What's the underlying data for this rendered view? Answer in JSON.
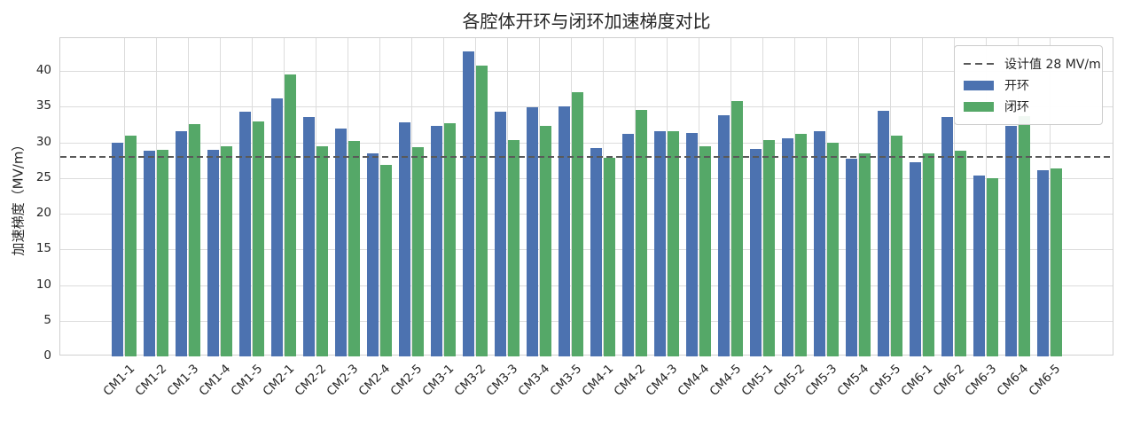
{
  "chart_data": {
    "type": "bar",
    "title": "各腔体开环与闭环加速梯度对比",
    "xlabel": "",
    "ylabel": "加速梯度（MV/m）",
    "categories": [
      "CM1-1",
      "CM1-2",
      "CM1-3",
      "CM1-4",
      "CM1-5",
      "CM2-1",
      "CM2-2",
      "CM2-3",
      "CM2-4",
      "CM2-5",
      "CM3-1",
      "CM3-2",
      "CM3-3",
      "CM3-4",
      "CM3-5",
      "CM4-1",
      "CM4-2",
      "CM4-3",
      "CM4-4",
      "CM4-5",
      "CM5-1",
      "CM5-2",
      "CM5-3",
      "CM5-4",
      "CM5-5",
      "CM6-1",
      "CM6-2",
      "CM6-3",
      "CM6-4",
      "CM6-5"
    ],
    "series": [
      {
        "name": "开环",
        "color": "#4C72B0",
        "values": [
          30.0,
          28.8,
          31.6,
          28.9,
          34.3,
          36.1,
          33.5,
          31.9,
          28.4,
          32.8,
          32.3,
          42.7,
          34.3,
          34.9,
          35.0,
          29.2,
          31.2,
          31.6,
          31.3,
          33.8,
          29.1,
          30.6,
          31.5,
          27.7,
          34.4,
          27.2,
          33.6,
          25.3,
          32.3,
          26.1
        ]
      },
      {
        "name": "闭环",
        "color": "#55A868",
        "values": [
          31.0,
          28.9,
          32.6,
          29.5,
          32.9,
          39.5,
          29.5,
          30.2,
          26.8,
          29.3,
          32.7,
          40.8,
          30.3,
          32.3,
          37.0,
          27.8,
          34.6,
          31.5,
          29.4,
          35.8,
          30.3,
          31.2,
          29.9,
          28.5,
          31.0,
          28.5,
          28.8,
          25.0,
          33.7,
          26.4
        ]
      }
    ],
    "reference_line": {
      "label": "设计值 28 MV/m",
      "value": 28,
      "color": "#595959",
      "style": "dashed"
    },
    "ylim": [
      0,
      44.6
    ],
    "yticks": [
      0,
      5,
      10,
      15,
      20,
      25,
      30,
      35,
      40
    ],
    "grid": true,
    "legend_position": "upper right"
  }
}
